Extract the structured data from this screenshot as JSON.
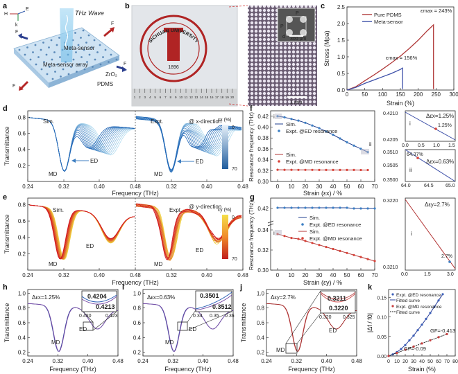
{
  "panel_labels": [
    "a",
    "b",
    "c",
    "d",
    "e",
    "f",
    "g",
    "h",
    "i",
    "j",
    "k"
  ],
  "panel_a": {
    "title": "THz Wave",
    "labels": [
      "Meta-sensor",
      "Meta-sensor array",
      "ZrO₂",
      "PDMS"
    ],
    "fields": {
      "h": "H",
      "e": "E",
      "k": "k",
      "fy": "F",
      "fx": "F",
      "fy_sub": "y",
      "fx_sub": "x"
    }
  },
  "panel_b": {
    "seal_text_top": "SICHUAN UNIVERSITY",
    "seal_year": "1896",
    "scale_small": "300 μm",
    "scale_large": "1 mm",
    "p_label": "P",
    "d_label": "d",
    "ruler_numbers": [
      "1",
      "2",
      "3",
      "4",
      "5",
      "6",
      "7",
      "8",
      "9",
      "10",
      "11",
      "12",
      "13",
      "14",
      "15",
      "16",
      "17",
      "18",
      "19",
      "20"
    ]
  },
  "chart_data": [
    {
      "id": "c",
      "type": "line",
      "xlabel": "Strain (%)",
      "ylabel": "Stress (Mpa)",
      "xlim": [
        0,
        300
      ],
      "ylim": [
        0.0,
        2.5
      ],
      "xticks": [
        0,
        50,
        100,
        150,
        200,
        250,
        300
      ],
      "yticks": [
        0.0,
        0.5,
        1.0,
        1.5,
        2.0,
        2.5
      ],
      "series": [
        {
          "name": "Pure PDMS",
          "color": "#b03a3a",
          "x": [
            0,
            25,
            50,
            75,
            100,
            125,
            150,
            175,
            200,
            225,
            243,
            243
          ],
          "y": [
            0,
            0.1,
            0.28,
            0.45,
            0.63,
            0.82,
            1.02,
            1.25,
            1.5,
            1.78,
            1.96,
            0.03
          ]
        },
        {
          "name": "Meta-sensor",
          "color": "#3c4fa8",
          "x": [
            0,
            25,
            50,
            75,
            100,
            125,
            150,
            156,
            156
          ],
          "y": [
            0,
            0.08,
            0.2,
            0.3,
            0.4,
            0.5,
            0.62,
            0.66,
            0.03
          ]
        }
      ],
      "annotations": [
        "εmax = 243%",
        "εmax = 156%"
      ]
    },
    {
      "id": "d",
      "type": "line",
      "xlabel": "Frequency (THz)",
      "ylabel": "Transmittance",
      "xticks": [
        "0.24",
        "0.32",
        "0.40",
        "0.48",
        "0.32",
        "0.40",
        "0.48"
      ],
      "yticks": [
        "0.2",
        "0.4",
        "0.6",
        "0.8"
      ],
      "labels": [
        "Sim.",
        "Expt.",
        "MD",
        "ED",
        "MD",
        "ED",
        "@ x-direction"
      ],
      "colorbar": {
        "label": "εx (%)",
        "min": "0",
        "max": "70"
      }
    },
    {
      "id": "e",
      "type": "line",
      "xlabel": "Frequency (THz)",
      "ylabel": "Transmittance",
      "xticks": [
        "0.24",
        "0.32",
        "0.40",
        "0.48",
        "0.32",
        "0.40",
        "0.48"
      ],
      "yticks": [
        "0.2",
        "0.4",
        "0.6",
        "0.8"
      ],
      "labels": [
        "Sim.",
        "Expt.",
        "MD",
        "ED",
        "MD",
        "ED",
        "@ y-direction"
      ],
      "colorbar": {
        "label": "εy (%)",
        "min": "0",
        "max": "70"
      }
    },
    {
      "id": "f",
      "type": "scatter",
      "xlabel": "Strain (εx) / %",
      "ylabel": "Resonance frequency (THz)",
      "xticks": [
        "0",
        "10",
        "20",
        "30",
        "40",
        "50",
        "60",
        "70"
      ],
      "yticks": [
        "0.30",
        "0.32",
        "0.34",
        "0.36",
        "0.38",
        "0.40",
        "0.42"
      ],
      "xlim": [
        -5,
        70
      ],
      "ylim": [
        0.3,
        0.43
      ],
      "legend": [
        "Sim.",
        "Expt. @ED resonance",
        "Sim.",
        "Expt. @MD resonance"
      ],
      "series": [
        {
          "name": "Expt. @ED resonance",
          "color": "#3c7fc4",
          "x": [
            0,
            5,
            10,
            15,
            20,
            25,
            30,
            35,
            40,
            45,
            50,
            55,
            60,
            65
          ],
          "y": [
            0.42,
            0.418,
            0.415,
            0.412,
            0.408,
            0.403,
            0.398,
            0.392,
            0.386,
            0.379,
            0.372,
            0.366,
            0.36,
            0.354
          ]
        },
        {
          "name": "Expt. @MD resonance",
          "color": "#d8443a",
          "x": [
            0,
            5,
            10,
            15,
            20,
            25,
            30,
            35,
            40,
            45,
            50,
            55,
            60,
            65
          ],
          "y": [
            0.3215,
            0.3214,
            0.3214,
            0.3213,
            0.3213,
            0.3213,
            0.3212,
            0.3212,
            0.3212,
            0.3211,
            0.3211,
            0.3211,
            0.321,
            0.321
          ]
        }
      ],
      "markers": [
        "i",
        "ii"
      ]
    },
    {
      "id": "g",
      "type": "scatter",
      "xlabel": "Strain (εy) / %",
      "ylabel": "Resonance frequency (THz)",
      "xticks": [
        "0",
        "10",
        "20",
        "30",
        "40",
        "50",
        "60",
        "70"
      ],
      "yticks": [
        "0.30",
        "0.32",
        "0.34",
        "0.42"
      ],
      "legend": [
        "Sim.",
        "Expt. @ED resonance",
        "Sim.",
        "Expt. @MD resonance"
      ],
      "series": [
        {
          "name": "Expt. @ED resonance",
          "color": "#3c7fc4",
          "x": [
            0,
            5,
            10,
            15,
            20,
            25,
            30,
            35,
            40,
            45,
            50,
            55,
            60,
            65,
            70
          ],
          "y": [
            0.421,
            0.421,
            0.421,
            0.421,
            0.421,
            0.421,
            0.421,
            0.421,
            0.421,
            0.421,
            0.421,
            0.42,
            0.42,
            0.42,
            0.42
          ]
        },
        {
          "name": "Expt. @MD resonance",
          "color": "#d8443a",
          "x": [
            0,
            5,
            10,
            15,
            20,
            25,
            30,
            35,
            40,
            45,
            50,
            55,
            60,
            65,
            70
          ],
          "y": [
            0.336,
            0.334,
            0.332,
            0.331,
            0.329,
            0.327,
            0.325,
            0.323,
            0.321,
            0.319,
            0.317,
            0.315,
            0.313,
            0.311,
            0.309
          ]
        }
      ],
      "markers": [
        "i"
      ]
    },
    {
      "id": "f_insets",
      "type": "line",
      "top": {
        "yticks": [
          "0.4210",
          "0.4205"
        ],
        "xticks": [
          "0.0",
          "0.5",
          "1.0",
          "1.5"
        ],
        "annotations": [
          "Δεx=1.25%",
          "1.25%"
        ],
        "marker": "i"
      },
      "bottom": {
        "yticks": [
          "0.3510",
          "0.3505",
          "0.3500"
        ],
        "xticks": [
          "64.0",
          "64.5",
          "65.0"
        ],
        "annotations": [
          "Δεx=0.63%",
          "64.37%"
        ],
        "marker": "ii"
      }
    },
    {
      "id": "g_inset",
      "type": "line",
      "yticks": [
        "0.3220",
        "0.3210"
      ],
      "xticks": [
        "0.0",
        "1.5",
        "3.0"
      ],
      "annotations": [
        "Δεy=2.7%",
        "2.7%"
      ],
      "marker": "i"
    },
    {
      "id": "h",
      "type": "line",
      "xlabel": "Frequency (THz)",
      "ylabel": "Transmittance",
      "xticks": [
        "0.24",
        "0.32",
        "0.40",
        "0.48"
      ],
      "yticks": [
        "0.2",
        "0.4",
        "0.6",
        "0.8",
        "1.0"
      ],
      "annotations": [
        "Δεx=1.25%",
        "MD",
        "ED"
      ],
      "inset": {
        "values": [
          "0.4204",
          "0.4213"
        ],
        "xticks": [
          "0.420",
          "0.423"
        ]
      }
    },
    {
      "id": "i",
      "type": "line",
      "xlabel": "Frequency (THz)",
      "xticks": [
        "0.24",
        "0.32",
        "0.40",
        "0.48"
      ],
      "yticks": [
        "0.2",
        "0.4",
        "0.6",
        "0.8",
        "1.0"
      ],
      "annotations": [
        "Δεx=0.63%",
        "MD",
        "ED"
      ],
      "inset": {
        "values": [
          "0.3501",
          "0.3512"
        ],
        "xticks": [
          "0.34",
          "0.35",
          "0.36"
        ]
      }
    },
    {
      "id": "j",
      "type": "line",
      "xlabel": "Frequency (THz)",
      "ylabel": "Transmittance",
      "xticks": [
        "0.24",
        "0.32",
        "0.40",
        "0.48"
      ],
      "yticks": [
        "0.2",
        "0.4",
        "0.6",
        "0.8",
        "1.0"
      ],
      "annotations": [
        "Δεy=2.7%",
        "MD",
        "ED"
      ],
      "inset": {
        "values": [
          "0.3211",
          "0.3220"
        ],
        "xticks": [
          "0.320",
          "0.325"
        ]
      }
    },
    {
      "id": "k",
      "type": "scatter",
      "xlabel": "Strain (%)",
      "ylabel": "|Δf / f0|",
      "xticks": [
        "0",
        "10",
        "20",
        "30",
        "40",
        "50",
        "60",
        "70",
        "80"
      ],
      "yticks": [
        "0.00",
        "0.05",
        "0.10",
        "0.15"
      ],
      "xlim": [
        0,
        80
      ],
      "ylim": [
        0,
        0.17
      ],
      "legend": [
        "Expt. @ED resonance",
        "Fitted curve",
        "Expt. @MD resonance",
        "Fitted curve"
      ],
      "annotations": [
        "GF=-0.413",
        "GF=-0.09"
      ],
      "series": [
        {
          "name": "Expt. @ED resonance",
          "color": "#3c5fb8",
          "x": [
            0,
            5,
            10,
            15,
            20,
            25,
            30,
            35,
            40,
            45,
            50,
            55,
            60,
            65
          ],
          "y": [
            0,
            0.004,
            0.01,
            0.018,
            0.028,
            0.04,
            0.052,
            0.066,
            0.08,
            0.095,
            0.11,
            0.126,
            0.142,
            0.158
          ]
        },
        {
          "name": "Expt. @MD resonance",
          "color": "#c63d3d",
          "x": [
            0,
            10,
            20,
            30,
            40,
            50,
            60,
            70
          ],
          "y": [
            0,
            0.008,
            0.016,
            0.024,
            0.032,
            0.04,
            0.048,
            0.056
          ]
        }
      ]
    }
  ]
}
